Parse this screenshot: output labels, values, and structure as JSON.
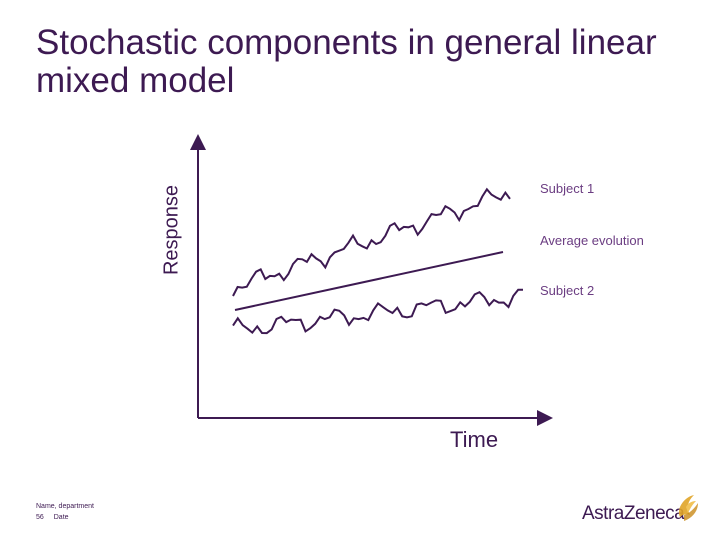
{
  "slide": {
    "title": "Stochastic components in general linear mixed model"
  },
  "diagram": {
    "y_axis_label": "Response",
    "x_axis_label": "Time",
    "series": [
      {
        "name": "Subject 1",
        "color": "#3d1a52"
      },
      {
        "name": "Average evolution",
        "color": "#3d1a52"
      },
      {
        "name": "Subject 2",
        "color": "#3d1a52"
      }
    ]
  },
  "footer": {
    "name_department": "Name, department",
    "page_number": "56",
    "date": "Date"
  },
  "logo": {
    "text": "AstraZeneca",
    "icon": "astrazeneca-swirl-icon",
    "colors": {
      "text": "#3d1a52",
      "mark": "#e0a427"
    }
  }
}
